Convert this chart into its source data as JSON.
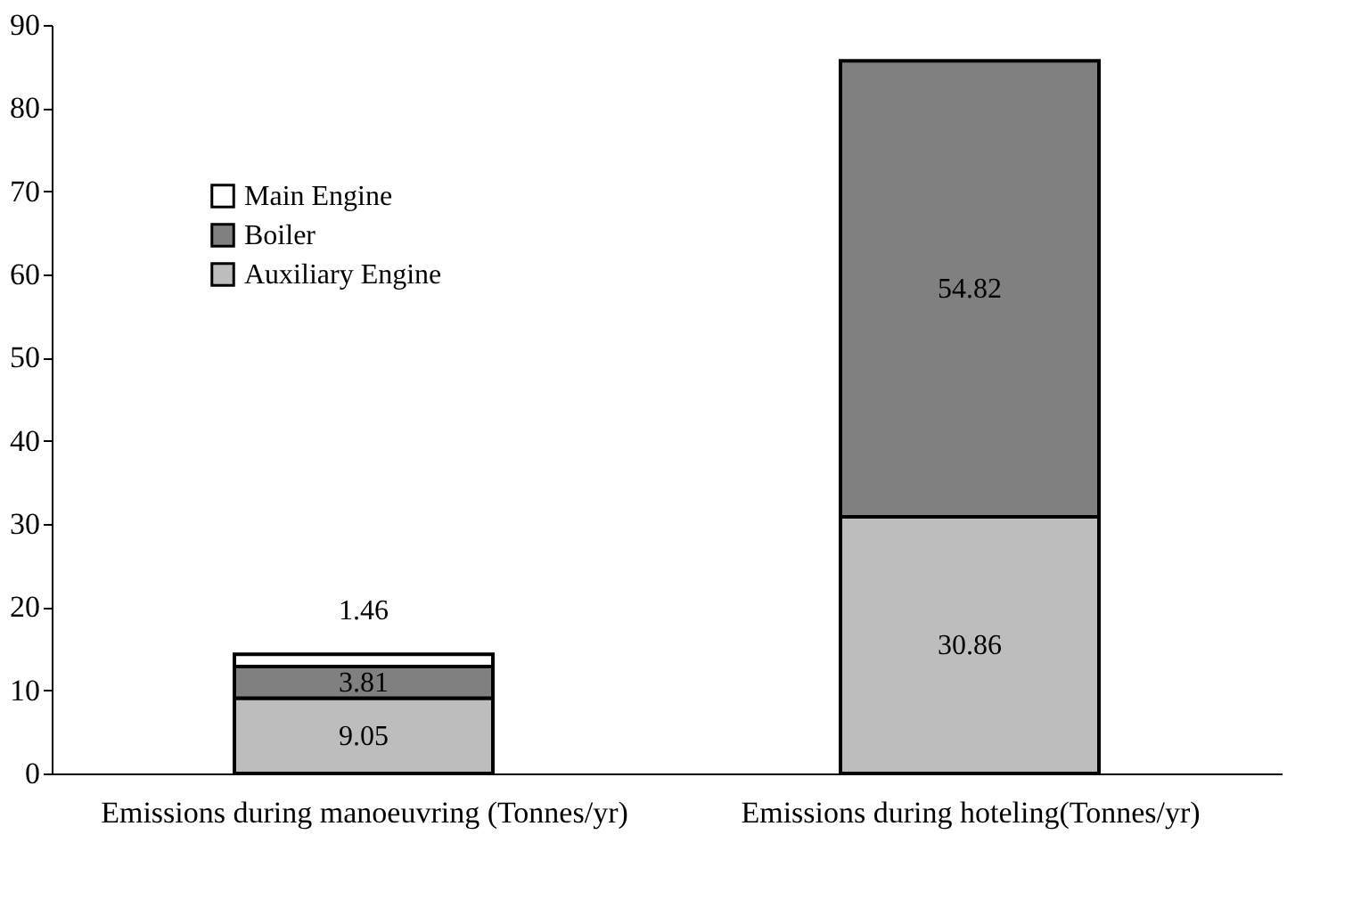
{
  "chart_data": {
    "type": "bar",
    "stacked": true,
    "categories": [
      "Emissions during manoeuvring (Tonnes/yr)",
      "Emissions during hoteling(Tonnes/yr)"
    ],
    "series": [
      {
        "name": "Auxiliary Engine",
        "color": "#bdbdbd",
        "values": [
          9.05,
          30.86
        ],
        "value_labels": [
          "9.05",
          "30.86"
        ]
      },
      {
        "name": "Boiler",
        "color": "#808080",
        "values": [
          3.81,
          54.82
        ],
        "value_labels": [
          "3.81",
          "54.82"
        ]
      },
      {
        "name": "Main Engine",
        "color": "#ffffff",
        "values": [
          1.46,
          null
        ],
        "value_labels": [
          "1.46",
          null
        ]
      }
    ],
    "ylim": [
      0,
      90
    ],
    "yticks": [
      0,
      10,
      20,
      30,
      40,
      50,
      60,
      70,
      80,
      90
    ],
    "grid": false,
    "legend": "top left"
  }
}
